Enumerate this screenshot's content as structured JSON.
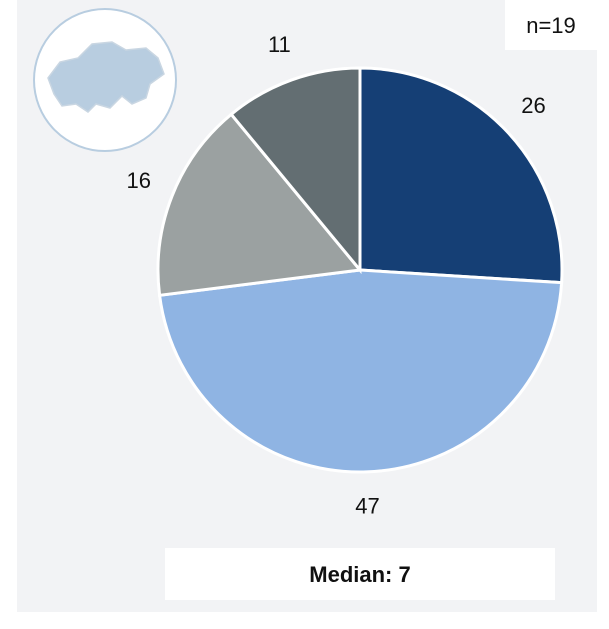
{
  "chart_data": {
    "type": "pie",
    "categories": [
      null,
      null,
      null,
      null
    ],
    "values": [
      26,
      47,
      16,
      11
    ],
    "colors": [
      "#153f75",
      "#8fb4e3",
      "#9ba1a1",
      "#636e72"
    ],
    "annotations": [
      "n=19",
      "Median: 7"
    ]
  }
}
